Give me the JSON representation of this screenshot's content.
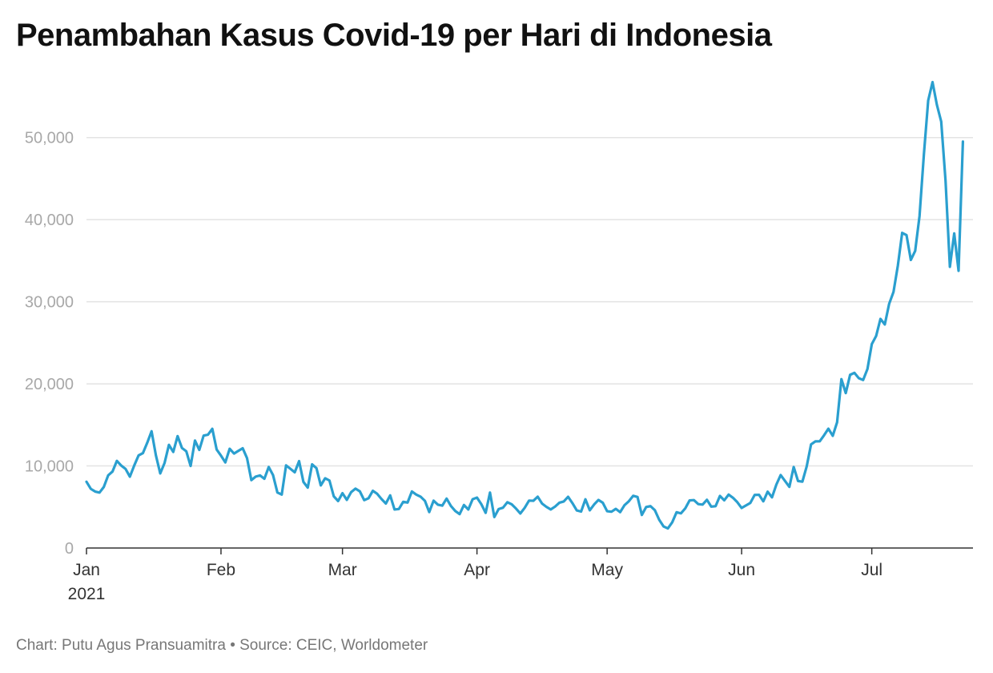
{
  "title": "Penambahan Kasus Covid-19 per Hari di Indonesia",
  "footer": "Chart: Putu Agus Pransuamitra • Source: CEIC, Worldometer",
  "colors": {
    "line": "#2a9fcf",
    "grid": "#e3e3e3",
    "axis": "#333333",
    "tick_label": "#a8a8a8"
  },
  "chart_data": {
    "type": "line",
    "title": "Penambahan Kasus Covid-19 per Hari di Indonesia",
    "xlabel": "",
    "ylabel": "",
    "ylim": [
      0,
      57000
    ],
    "y_ticks": [
      0,
      10000,
      20000,
      30000,
      40000,
      50000
    ],
    "y_tick_labels": [
      "0",
      "10,000",
      "20,000",
      "30,000",
      "40,000",
      "50,000"
    ],
    "x_ticks": [
      {
        "date": "2021-01-01",
        "label": "Jan",
        "sublabel": "2021"
      },
      {
        "date": "2021-02-01",
        "label": "Feb"
      },
      {
        "date": "2021-03-01",
        "label": "Mar"
      },
      {
        "date": "2021-04-01",
        "label": "Apr"
      },
      {
        "date": "2021-05-01",
        "label": "May"
      },
      {
        "date": "2021-06-01",
        "label": "Jun"
      },
      {
        "date": "2021-07-01",
        "label": "Jul"
      }
    ],
    "x_start": "2021-01-01",
    "x_end": "2021-07-21",
    "grid": true,
    "legend": "none",
    "series": [
      {
        "values": [
          8072,
          7203,
          6877,
          6753,
          7445,
          8854,
          9321,
          10617,
          10046,
          9640,
          8692,
          10047,
          11278,
          11557,
          12818,
          14224,
          11287,
          9086,
          10365,
          12568,
          11703,
          13632,
          12191,
          11788,
          9994,
          13094,
          11948,
          13695,
          13802,
          14518,
          12001,
          11251,
          10430,
          12092,
          11509,
          11837,
          12156,
          10956,
          8271,
          8700,
          8844,
          8435,
          9869,
          8877,
          6765,
          6506,
          10064,
          9652,
          9224,
          10588,
          8052,
          7358,
          10198,
          9733,
          7626,
          8493,
          8223,
          6296,
          5723,
          6680,
          5864,
          6809,
          7232,
          6905,
          5835,
          6055,
          6971,
          6601,
          5969,
          5418,
          6413,
          4690,
          4753,
          5627,
          5540,
          6890,
          6510,
          6257,
          5748,
          4377,
          5766,
          5273,
          5162,
          6019,
          5117,
          4508,
          4127,
          5241,
          4690,
          5937,
          6142,
          5344,
          4284,
          6754,
          3772,
          4744,
          4910,
          5576,
          5325,
          4805,
          4208,
          4898,
          5776,
          5755,
          6251,
          5419,
          5017,
          4699,
          5043,
          5521,
          5669,
          6242,
          5469,
          4584,
          4441,
          5934,
          4595,
          5303,
          5853,
          5516,
          4484,
          4422,
          4771,
          4369,
          5218,
          5697,
          6361,
          6219,
          4032,
          4996,
          5100,
          4604,
          3440,
          2633,
          2385,
          3129,
          4359,
          4220,
          4822,
          5800,
          5839,
          5347,
          5289,
          5874,
          5042,
          5095,
          6346,
          5812,
          6505,
          6120,
          5585,
          4877,
          5186,
          5489,
          6467,
          6486,
          5688,
          6862,
          6177,
          7724,
          8892,
          8169,
          7444,
          9868,
          8161,
          8083,
          9944,
          12624,
          12990,
          13000,
          13737,
          14536,
          13668,
          15308,
          20574,
          18872,
          21095,
          21342,
          20694,
          20467,
          21807,
          24836,
          25830,
          27913,
          27233,
          29745,
          31189,
          34379,
          38391,
          38124,
          35094,
          36197,
          40427,
          47899,
          54517,
          56757,
          54000,
          51952,
          44721,
          34257,
          38325,
          33772,
          49509
        ]
      }
    ]
  }
}
